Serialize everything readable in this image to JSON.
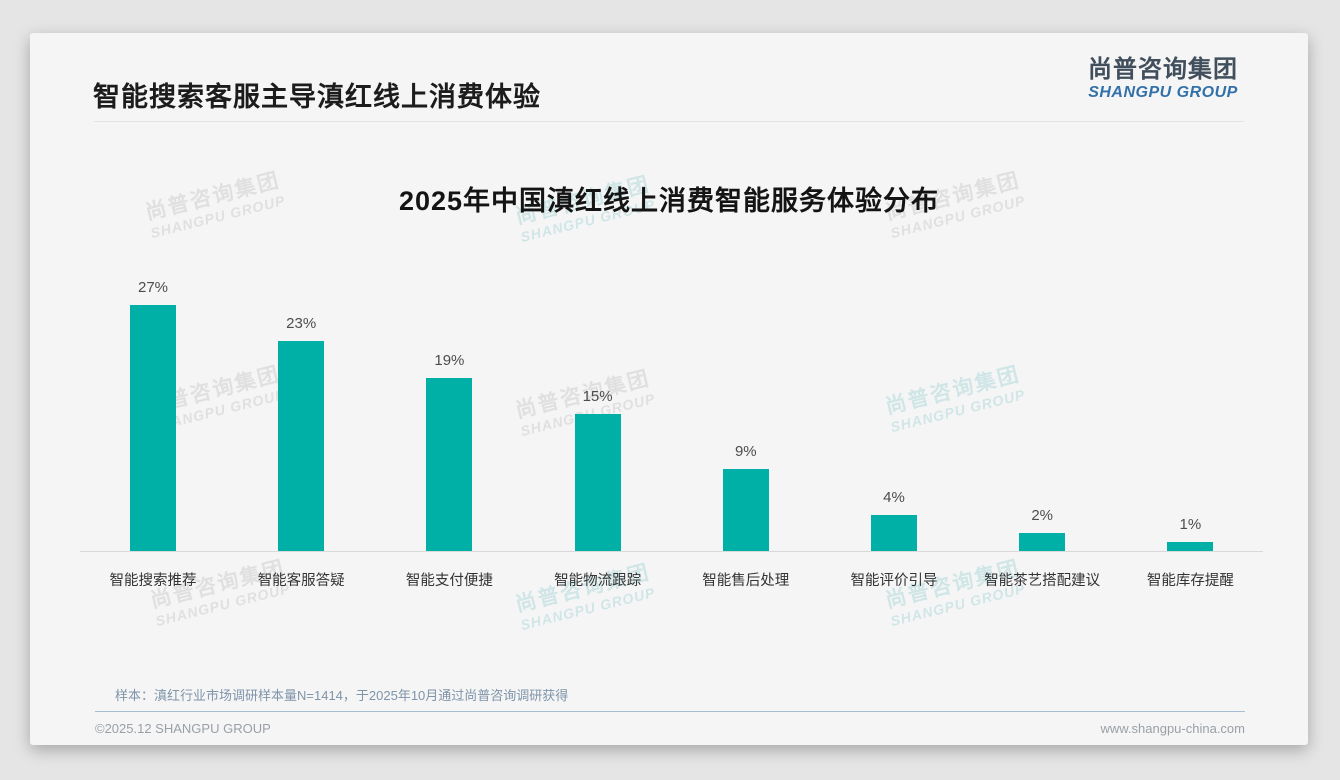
{
  "page": {
    "title": "智能搜索客服主导滇红线上消费体验",
    "logo": {
      "cn": "尚普咨询集团",
      "en": "SHANGPU GROUP"
    },
    "watermark": {
      "cn": "尚普咨询集团",
      "en": "SHANGPU GROUP"
    },
    "sample_note": "样本：滇红行业市场调研样本量N=1414，于2025年10月通过尚普咨询调研获得",
    "footer": {
      "left": "©2025.12 SHANGPU GROUP",
      "right": "www.shangpu-china.com"
    }
  },
  "colors": {
    "bar": "#00b0a6",
    "logo_cn": "#414e5b",
    "logo_en": "#3170a8",
    "note": "#7e94a9"
  },
  "chart_data": {
    "type": "bar",
    "title": "2025年中国滇红线上消费智能服务体验分布",
    "categories": [
      "智能搜索推荐",
      "智能客服答疑",
      "智能支付便捷",
      "智能物流跟踪",
      "智能售后处理",
      "智能评价引导",
      "智能茶艺搭配建议",
      "智能库存提醒"
    ],
    "values": [
      27,
      23,
      19,
      15,
      9,
      4,
      2,
      1
    ],
    "unit": "%",
    "data_labels": [
      "27%",
      "23%",
      "19%",
      "15%",
      "9%",
      "4%",
      "2%",
      "1%"
    ],
    "xlabel": "",
    "ylabel": "",
    "ylim": [
      0,
      30
    ],
    "grid": false,
    "legend": "none",
    "bar_color": "#00b0a6"
  }
}
